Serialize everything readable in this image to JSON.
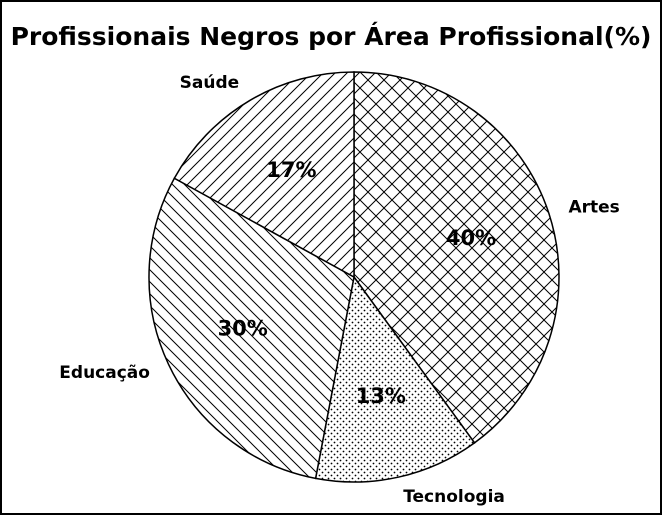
{
  "chart_data": {
    "type": "pie",
    "title": "Profissionais Negros por Área Profissional(%)",
    "categories": [
      "Artes",
      "Tecnologia",
      "Educação",
      "Saúde"
    ],
    "values": [
      40,
      13,
      30,
      17
    ],
    "value_labels": [
      "40%",
      "13%",
      "30%",
      "17%"
    ],
    "hatches": [
      "x",
      ".",
      "\\",
      "/"
    ],
    "color": "#ffffff",
    "edgecolor": "#000000",
    "startangle": 90,
    "direction": "clockwise"
  }
}
